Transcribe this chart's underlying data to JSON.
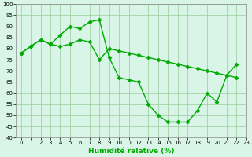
{
  "x": [
    0,
    1,
    2,
    3,
    4,
    5,
    6,
    7,
    8,
    9,
    10,
    11,
    12,
    13,
    14,
    15,
    16,
    17,
    18,
    19,
    20,
    21,
    22,
    23
  ],
  "line1": [
    78,
    81,
    84,
    82,
    86,
    90,
    89,
    92,
    93,
    76,
    67,
    66,
    65,
    55,
    50,
    47,
    47,
    47,
    52,
    60,
    56,
    68,
    73,
    null
  ],
  "line2": [
    78,
    81,
    84,
    82,
    81,
    82,
    84,
    83,
    75,
    80,
    79,
    78,
    77,
    76,
    75,
    74,
    73,
    72,
    71,
    70,
    69,
    68,
    67,
    null
  ],
  "line_color": "#00AA00",
  "bg_color": "#D8F5E8",
  "grid_color": "#99CC99",
  "xlabel": "Humidité relative (%)",
  "ylim": [
    40,
    100
  ],
  "xlim": [
    -0.5,
    23
  ],
  "yticks": [
    40,
    45,
    50,
    55,
    60,
    65,
    70,
    75,
    80,
    85,
    90,
    95,
    100
  ],
  "xticks": [
    0,
    1,
    2,
    3,
    4,
    5,
    6,
    7,
    8,
    9,
    10,
    11,
    12,
    13,
    14,
    15,
    16,
    17,
    18,
    19,
    20,
    21,
    22,
    23
  ],
  "marker": "D",
  "markersize": 2.5,
  "linewidth": 1.0,
  "tick_fontsize": 5.0,
  "xlabel_fontsize": 6.5
}
